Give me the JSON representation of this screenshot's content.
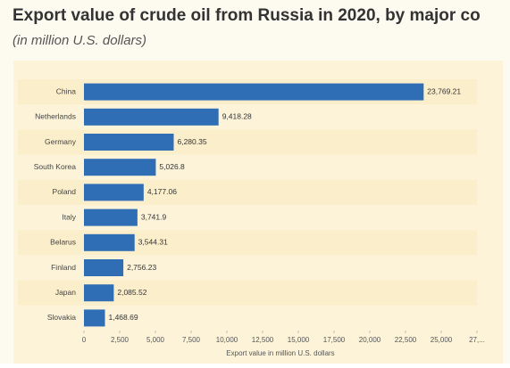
{
  "chart_data": {
    "type": "bar",
    "orientation": "horizontal",
    "title": "Export value of crude oil from Russia in 2020, by major co",
    "subtitle": "(in million U.S. dollars)",
    "x_label": "Export value in million U.S. dollars",
    "categories": [
      "China",
      "Netherlands",
      "Germany",
      "South Korea",
      "Poland",
      "Italy",
      "Belarus",
      "Finland",
      "Japan",
      "Slovakia"
    ],
    "values": [
      23769.21,
      9418.28,
      6280.35,
      5026.8,
      4177.06,
      3741.9,
      3544.31,
      2756.23,
      2085.52,
      1468.69
    ],
    "value_labels": [
      "23,769.21",
      "9,418.28",
      "6,280.35",
      "5,026.8",
      "4,177.06",
      "3,741.9",
      "3,544.31",
      "2,756.23",
      "2,085.52",
      "1,468.69"
    ],
    "color": "#2f6db5",
    "xlim": [
      0,
      27500
    ],
    "xticks": [
      0,
      {
        "value": 2500,
        "label": "2,500"
      },
      {
        "value": 5000,
        "label": "5,000"
      },
      {
        "value": 7500,
        "label": "7,500"
      },
      {
        "value": 10000,
        "label": "10,000"
      },
      {
        "value": 12500,
        "label": "12,500"
      },
      {
        "value": 15000,
        "label": "15,000"
      },
      {
        "value": 17500,
        "label": "17,500"
      },
      {
        "value": 20000,
        "label": "20,000"
      },
      {
        "value": 22500,
        "label": "22,500"
      },
      {
        "value": 25000,
        "label": "25,000"
      },
      {
        "value": 27500,
        "label": "27,..."
      }
    ]
  }
}
